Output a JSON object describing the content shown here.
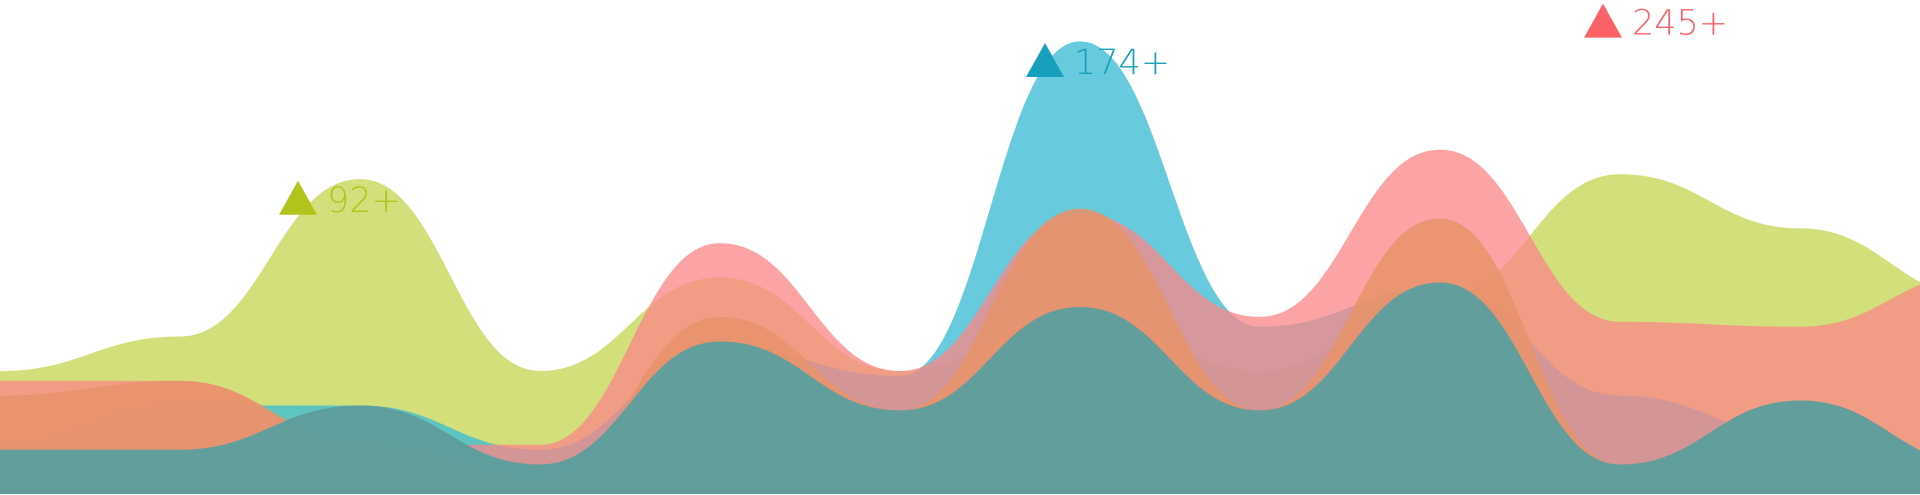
{
  "chart_data": {
    "type": "area",
    "x": [
      0,
      1,
      2,
      3,
      4,
      5,
      6,
      7,
      8,
      9,
      10,
      11
    ],
    "ylim": [
      0,
      100
    ],
    "grid": false,
    "series": [
      {
        "key": "green",
        "color": "#c7d75a",
        "opacity": 0.8,
        "values": [
          25,
          32,
          64,
          25,
          44,
          25,
          37,
          25,
          40,
          65,
          54,
          40
        ]
      },
      {
        "key": "blue",
        "color": "#3cbcd3",
        "opacity": 0.78,
        "values": [
          10,
          18,
          18,
          9,
          30,
          24,
          92,
          34,
          42,
          20,
          12,
          5
        ]
      },
      {
        "key": "red",
        "color": "#fb8587",
        "opacity": 0.75,
        "values": [
          23,
          23,
          10,
          10,
          51,
          25,
          57,
          36,
          70,
          35,
          34,
          45
        ]
      },
      {
        "key": "orange",
        "color": "#e8936a",
        "opacity": 0.85,
        "values": [
          20,
          23,
          11,
          3,
          36,
          17,
          58,
          17,
          56,
          6,
          19,
          6
        ]
      },
      {
        "key": "teal",
        "color": "#5e9e9d",
        "opacity": 0.98,
        "values": [
          9,
          9,
          18,
          6,
          31,
          17,
          38,
          17,
          43,
          6,
          19,
          6
        ]
      }
    ],
    "annotations": [
      {
        "text": "92+",
        "series": "green",
        "color": "#b2c31b",
        "x": 1.55,
        "y": 60
      },
      {
        "text": "174+",
        "series": "blue",
        "color": "#17a0bd",
        "x": 5.7,
        "y": 88
      },
      {
        "text": "245+",
        "series": "red",
        "color": "#fa6266",
        "x": 8.8,
        "y": 96
      }
    ]
  }
}
